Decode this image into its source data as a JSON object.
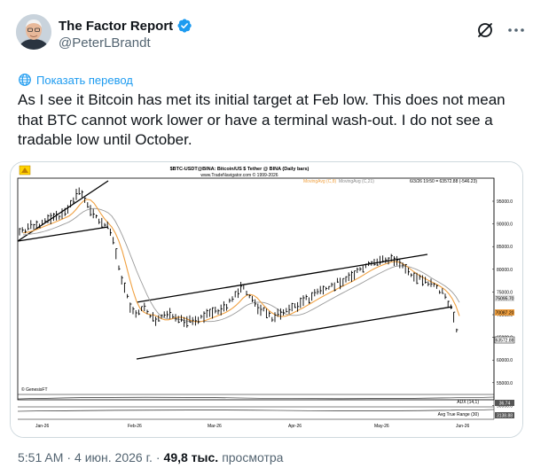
{
  "tweet": {
    "author": {
      "display_name": "The Factor Report",
      "handle": "@PeterLBrandt",
      "verified": true,
      "verified_color": "#1d9bf0"
    },
    "translate_label": "Показать перевод",
    "text": "As I see it Bitcoin has met its initial target at Feb low. This does not mean that BTC cannot work lower or have a terminal wash-out. I do not see a tradable low until October.",
    "time": "5:51 AM",
    "date": "4 июн. 2026 г.",
    "views_count": "49,8 тыс.",
    "views_label": "просмотра",
    "icons": {
      "grok": "grok-icon",
      "more": "more-icon",
      "translate": "globe-icon"
    }
  },
  "chart_image": {
    "header_title": "$BTC-USDT@BINA: Bitcoin/US $ Tether @ BINA  (Daily bars)",
    "header_url": "www.TradeNavigator.com © 1999-2026",
    "legend_ma_fast": "MovingAvg (C,8)",
    "legend_ma_slow": "MovingAvg (C,21)",
    "legend_bar_info": "6/3/26  19:50 = 63572.88  (-546.23)",
    "watermark": "© GenesisFT",
    "indicator1": "ADX (14,1)",
    "indicator2": "Avg True Range (30)",
    "colors": {
      "ma_fast": "#f0a040",
      "ma_slow": "#9a9a9a",
      "bars": "#000000",
      "last_price_box": "#f0a000"
    },
    "price_axis": [
      "95000.0",
      "90000.0",
      "85000.0",
      "80000.0",
      "75000.0",
      "70000.0",
      "65000.0",
      "60000.0",
      "55000.0",
      "50000.0"
    ],
    "price_tags": {
      "ma_fast": "70087.20",
      "ma_slow": "75095.70",
      "last": "63572.88"
    },
    "indicator_values": {
      "adx": "36.74",
      "atr": "3138.88"
    },
    "date_axis": [
      "Jan-26",
      "Feb-26",
      "Mar-26",
      "Apr-26",
      "May-26",
      "Jun-26"
    ]
  }
}
